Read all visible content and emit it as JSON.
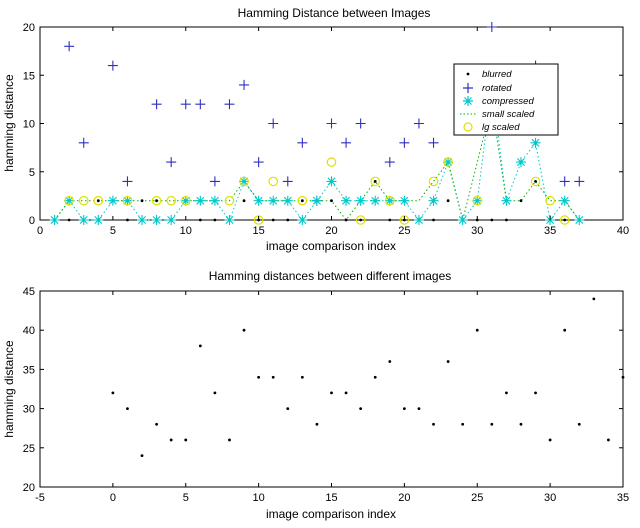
{
  "chart_data": [
    {
      "type": "scatter",
      "title": "Hamming Distance between Images",
      "xlabel": "image comparison index",
      "ylabel": "hamming distance",
      "xlim": [
        0,
        40
      ],
      "ylim": [
        0,
        20
      ],
      "xticks": [
        "0",
        "5",
        "10",
        "15",
        "20",
        "25",
        "30",
        "35",
        "40"
      ],
      "yticks": [
        "0",
        "5",
        "10",
        "15",
        "20"
      ],
      "grid": false,
      "legend_position": "right",
      "series": [
        {
          "name": "blurred",
          "marker": "dot",
          "color": "#000000",
          "x": [
            1,
            2,
            3,
            4,
            5,
            6,
            7,
            8,
            9,
            10,
            11,
            12,
            13,
            14,
            15,
            16,
            17,
            18,
            19,
            20,
            21,
            22,
            23,
            24,
            25,
            26,
            27,
            28,
            29,
            30,
            31,
            32,
            33,
            34,
            35,
            36,
            37
          ],
          "y": [
            0,
            0,
            0,
            2,
            2,
            0,
            2,
            2,
            0,
            2,
            0,
            0,
            0,
            2,
            0,
            0,
            0,
            2,
            2,
            2,
            0,
            0,
            4,
            0,
            0,
            0,
            0,
            2,
            0,
            0,
            0,
            0,
            2,
            4,
            0,
            0,
            0
          ]
        },
        {
          "name": "rotated",
          "marker": "plus",
          "color": "#3030c0",
          "x": [
            2,
            3,
            5,
            6,
            8,
            9,
            10,
            11,
            12,
            13,
            14,
            15,
            16,
            17,
            18,
            19,
            20,
            21,
            22,
            24,
            25,
            26,
            27,
            31,
            34,
            35,
            36,
            37
          ],
          "y": [
            18,
            8,
            16,
            4,
            12,
            6,
            12,
            12,
            4,
            12,
            14,
            6,
            10,
            4,
            8,
            2,
            10,
            8,
            10,
            6,
            8,
            10,
            8,
            20,
            16,
            10,
            4,
            4
          ]
        },
        {
          "name": "compressed",
          "marker": "asterisk",
          "color": "#00c8c8",
          "connected": true,
          "x": [
            1,
            2,
            3,
            4,
            5,
            6,
            7,
            8,
            9,
            10,
            11,
            12,
            13,
            14,
            15,
            16,
            17,
            18,
            19,
            20,
            21,
            22,
            23,
            24,
            25,
            26,
            27,
            28,
            29,
            30,
            31,
            32,
            33,
            34,
            35,
            36,
            37
          ],
          "y": [
            0,
            2,
            0,
            0,
            2,
            2,
            0,
            0,
            0,
            2,
            2,
            2,
            0,
            4,
            2,
            2,
            2,
            0,
            2,
            4,
            2,
            2,
            2,
            2,
            2,
            0,
            2,
            6,
            0,
            2,
            14,
            2,
            6,
            8,
            0,
            2,
            0
          ]
        },
        {
          "name": "small scaled",
          "marker": "dotted-line",
          "color": "#00b000",
          "x": [
            1,
            2,
            3,
            4,
            5,
            6,
            7,
            8,
            9,
            10,
            11,
            12,
            13,
            14,
            15,
            16,
            17,
            18,
            19,
            20,
            21,
            22,
            23,
            24,
            25,
            26,
            27,
            28,
            29,
            30,
            31,
            32,
            33,
            34,
            35,
            36,
            37
          ],
          "y": [
            0,
            2,
            2,
            2,
            2,
            2,
            2,
            2,
            2,
            2,
            2,
            2,
            2,
            4,
            2,
            2,
            2,
            2,
            2,
            2,
            0,
            2,
            4,
            2,
            2,
            2,
            4,
            6,
            0,
            6,
            12,
            2,
            2,
            4,
            2,
            2,
            0
          ]
        },
        {
          "name": "lg scaled",
          "marker": "circle",
          "color": "#e0e000",
          "x": [
            2,
            3,
            4,
            6,
            8,
            9,
            10,
            13,
            14,
            15,
            16,
            18,
            20,
            22,
            23,
            24,
            25,
            27,
            28,
            30,
            34,
            35,
            36
          ],
          "y": [
            2,
            2,
            2,
            2,
            2,
            2,
            2,
            2,
            4,
            0,
            4,
            2,
            6,
            0,
            4,
            2,
            0,
            4,
            6,
            2,
            4,
            2,
            0
          ]
        }
      ]
    },
    {
      "type": "scatter",
      "title": "Hamming distances between different images",
      "xlabel": "image comparison index",
      "ylabel": "hamming distance",
      "xlim": [
        -5,
        35
      ],
      "ylim": [
        20,
        45
      ],
      "xticks": [
        "-5",
        "0",
        "5",
        "10",
        "15",
        "20",
        "25",
        "30",
        "35"
      ],
      "yticks": [
        "20",
        "25",
        "30",
        "35",
        "40",
        "45"
      ],
      "grid": false,
      "series": [
        {
          "marker": "dot",
          "color": "#000000",
          "x": [
            0,
            1,
            2,
            3,
            4,
            5,
            6,
            7,
            8,
            9,
            10,
            11,
            12,
            13,
            14,
            15,
            16,
            17,
            18,
            19,
            20,
            21,
            22,
            23,
            24,
            25,
            26,
            27,
            28,
            29,
            30,
            31,
            32,
            33,
            34,
            35
          ],
          "y": [
            32,
            30,
            24,
            28,
            26,
            26,
            38,
            32,
            26,
            40,
            34,
            34,
            30,
            34,
            28,
            32,
            32,
            30,
            34,
            36,
            30,
            30,
            28,
            36,
            28,
            40,
            28,
            32,
            28,
            32,
            26,
            40,
            28,
            44,
            26,
            34
          ]
        }
      ]
    }
  ]
}
